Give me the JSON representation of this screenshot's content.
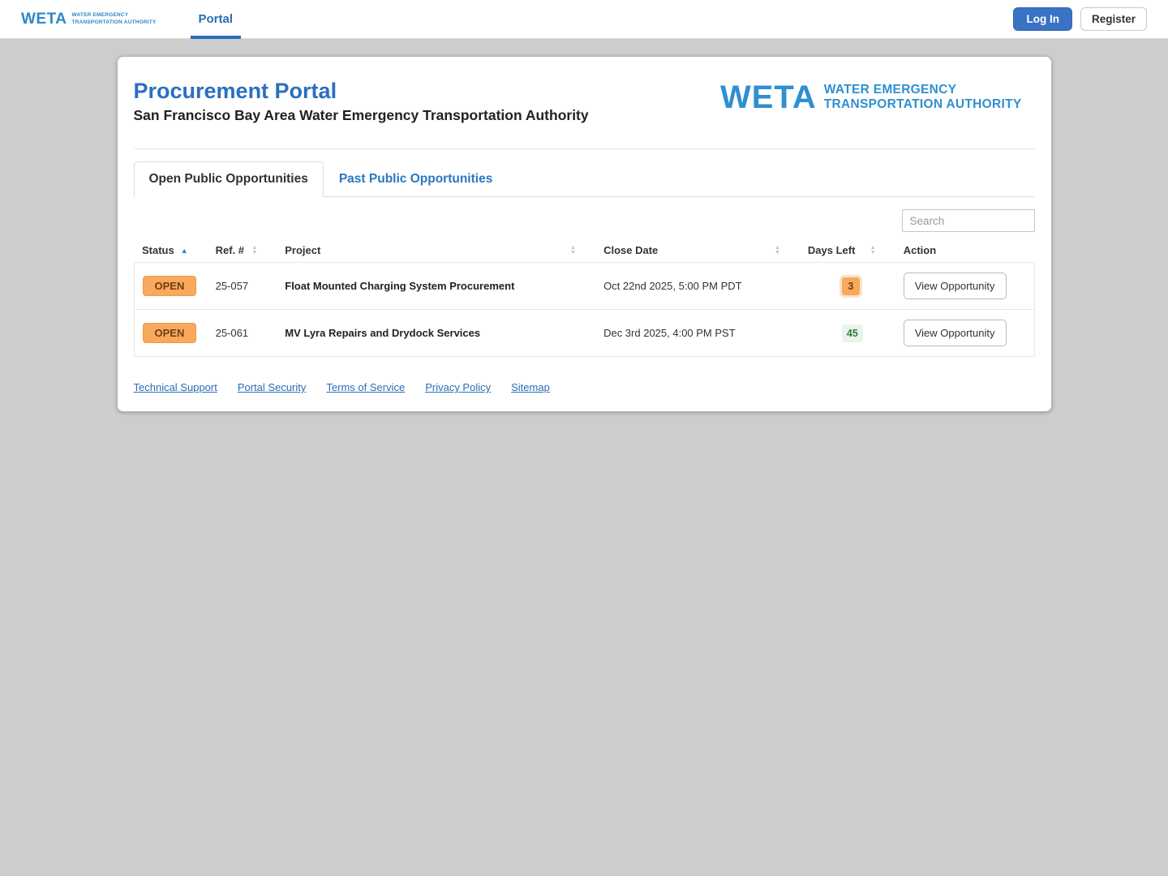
{
  "navbar": {
    "brand": {
      "acronym": "WETA",
      "tagline_line1": "WATER EMERGENCY",
      "tagline_line2": "TRANSPORTATION AUTHORITY"
    },
    "nav_items": [
      {
        "label": "Portal",
        "active": true
      }
    ],
    "login_label": "Log In",
    "register_label": "Register"
  },
  "header": {
    "title": "Procurement Portal",
    "subtitle": "San Francisco Bay Area Water Emergency Transportation Authority",
    "logo": {
      "acronym": "WETA",
      "line1": "WATER EMERGENCY",
      "line2": "TRANSPORTATION AUTHORITY"
    }
  },
  "tabs": [
    {
      "label": "Open Public Opportunities",
      "active": true
    },
    {
      "label": "Past Public Opportunities",
      "active": false
    }
  ],
  "search": {
    "placeholder": "Search",
    "value": ""
  },
  "table": {
    "columns": [
      {
        "label": "Status",
        "sort": "asc"
      },
      {
        "label": "Ref. #",
        "sort": "none"
      },
      {
        "label": "Project",
        "sort": "none"
      },
      {
        "label": "Close Date",
        "sort": "none"
      },
      {
        "label": "Days Left",
        "sort": "none"
      },
      {
        "label": "Action",
        "sort": null
      }
    ],
    "rows": [
      {
        "status": "OPEN",
        "ref": "25-057",
        "project": "Float Mounted Charging System Procurement",
        "close_date": "Oct 22nd 2025, 5:00 PM PDT",
        "days_left": "3",
        "days_left_level": "warning",
        "action_label": "View Opportunity"
      },
      {
        "status": "OPEN",
        "ref": "25-061",
        "project": "MV Lyra Repairs and Drydock Services",
        "close_date": "Dec 3rd 2025, 4:00 PM PST",
        "days_left": "45",
        "days_left_level": "ok",
        "action_label": "View Opportunity"
      }
    ]
  },
  "footer": {
    "links": [
      "Technical Support",
      "Portal Security",
      "Terms of Service",
      "Privacy Policy",
      "Sitemap"
    ]
  },
  "colors": {
    "brand_blue": "#2E86C8",
    "logo_blue": "#2E90D1",
    "link_blue": "#2A6DB5",
    "title_blue": "#2A6FC0",
    "login_button_blue": "#3A72C4",
    "open_badge_bg": "#F8A95D",
    "open_badge_text": "#713F12",
    "days_left_warning_bg": "#F8A95D",
    "days_left_ok_bg": "#E9F4EA",
    "days_left_ok_text": "#2F7D3F",
    "page_background": "#CDCDCD"
  }
}
